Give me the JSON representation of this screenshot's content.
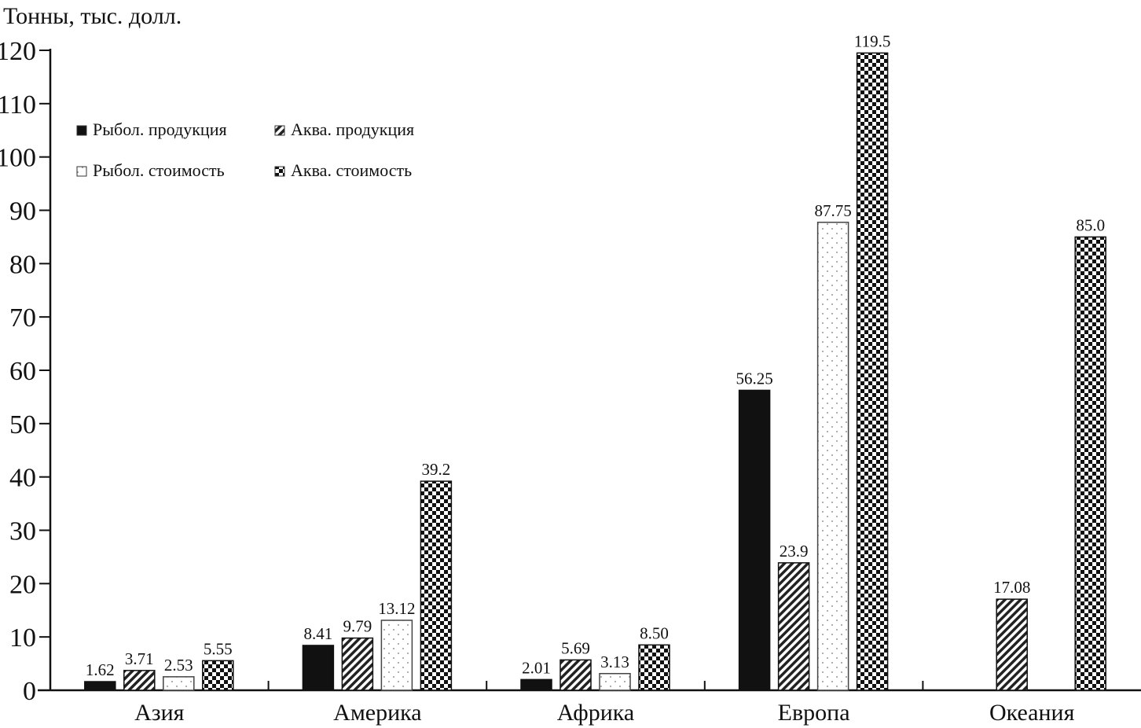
{
  "chart_data": {
    "type": "bar",
    "title": "",
    "ylabel": "Тонны, тыс. долл.",
    "xlabel": "",
    "ylim": [
      0,
      120
    ],
    "yticks": [
      0,
      10,
      20,
      30,
      40,
      50,
      60,
      70,
      80,
      90,
      100,
      110,
      120
    ],
    "categories": [
      "Азия",
      "Америка",
      "Африка",
      "Европа",
      "Океания"
    ],
    "legend_position": "top-left",
    "series": [
      {
        "name": "Рыбол. продукция",
        "pattern": "solid",
        "values": [
          1.62,
          8.41,
          2.01,
          56.25,
          null
        ],
        "labels": [
          "1.62",
          "8.41",
          "2.01",
          "56.25",
          null
        ]
      },
      {
        "name": "Аква. продукция",
        "pattern": "hatch",
        "values": [
          3.71,
          9.79,
          5.69,
          23.9,
          17.08
        ],
        "labels": [
          "3.71",
          "9.79",
          "5.69",
          "23.9",
          "17.08"
        ]
      },
      {
        "name": "Рыбол. стоимость",
        "pattern": "dots",
        "values": [
          2.53,
          13.12,
          3.13,
          87.75,
          null
        ],
        "labels": [
          "2.53",
          "13.12",
          "3.13",
          "87.75",
          null
        ]
      },
      {
        "name": "Аква. стоимость",
        "pattern": "checker",
        "values": [
          5.55,
          39.2,
          8.5,
          119.5,
          85.0
        ],
        "labels": [
          "5.55",
          "39.2",
          "8.50",
          "119.5",
          "85.0"
        ]
      }
    ]
  }
}
